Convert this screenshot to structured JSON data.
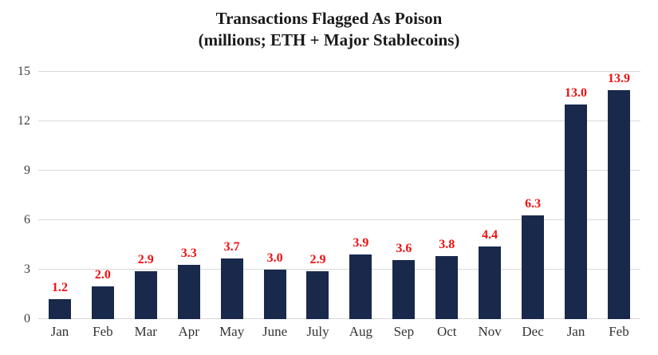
{
  "chart_data": {
    "type": "bar",
    "title": "Transactions Flagged As Poison",
    "subtitle": "(millions; ETH + Major Stablecoins)",
    "categories": [
      "Jan",
      "Feb",
      "Mar",
      "Apr",
      "May",
      "June",
      "July",
      "Aug",
      "Sep",
      "Oct",
      "Nov",
      "Dec",
      "Jan",
      "Feb"
    ],
    "values": [
      1.2,
      2.0,
      2.9,
      3.3,
      3.7,
      3.0,
      2.9,
      3.9,
      3.6,
      3.8,
      4.4,
      6.3,
      13.0,
      13.9
    ],
    "value_labels": [
      "1.2",
      "2.0",
      "2.9",
      "3.3",
      "3.7",
      "3.0",
      "2.9",
      "3.9",
      "3.6",
      "3.8",
      "4.4",
      "6.3",
      "13.0",
      "13.9"
    ],
    "yticks": [
      0,
      3,
      6,
      9,
      12,
      15
    ],
    "ylim": [
      0,
      15
    ],
    "xlabel": "",
    "ylabel": "",
    "grid": "horizontal",
    "legend": "none",
    "colors": {
      "bar": "#18294b",
      "value_label": "#ee1111",
      "gridline": "#d9d9d9",
      "tick_label": "#404040",
      "title": "#1a1a1a",
      "background": "#ffffff"
    }
  }
}
